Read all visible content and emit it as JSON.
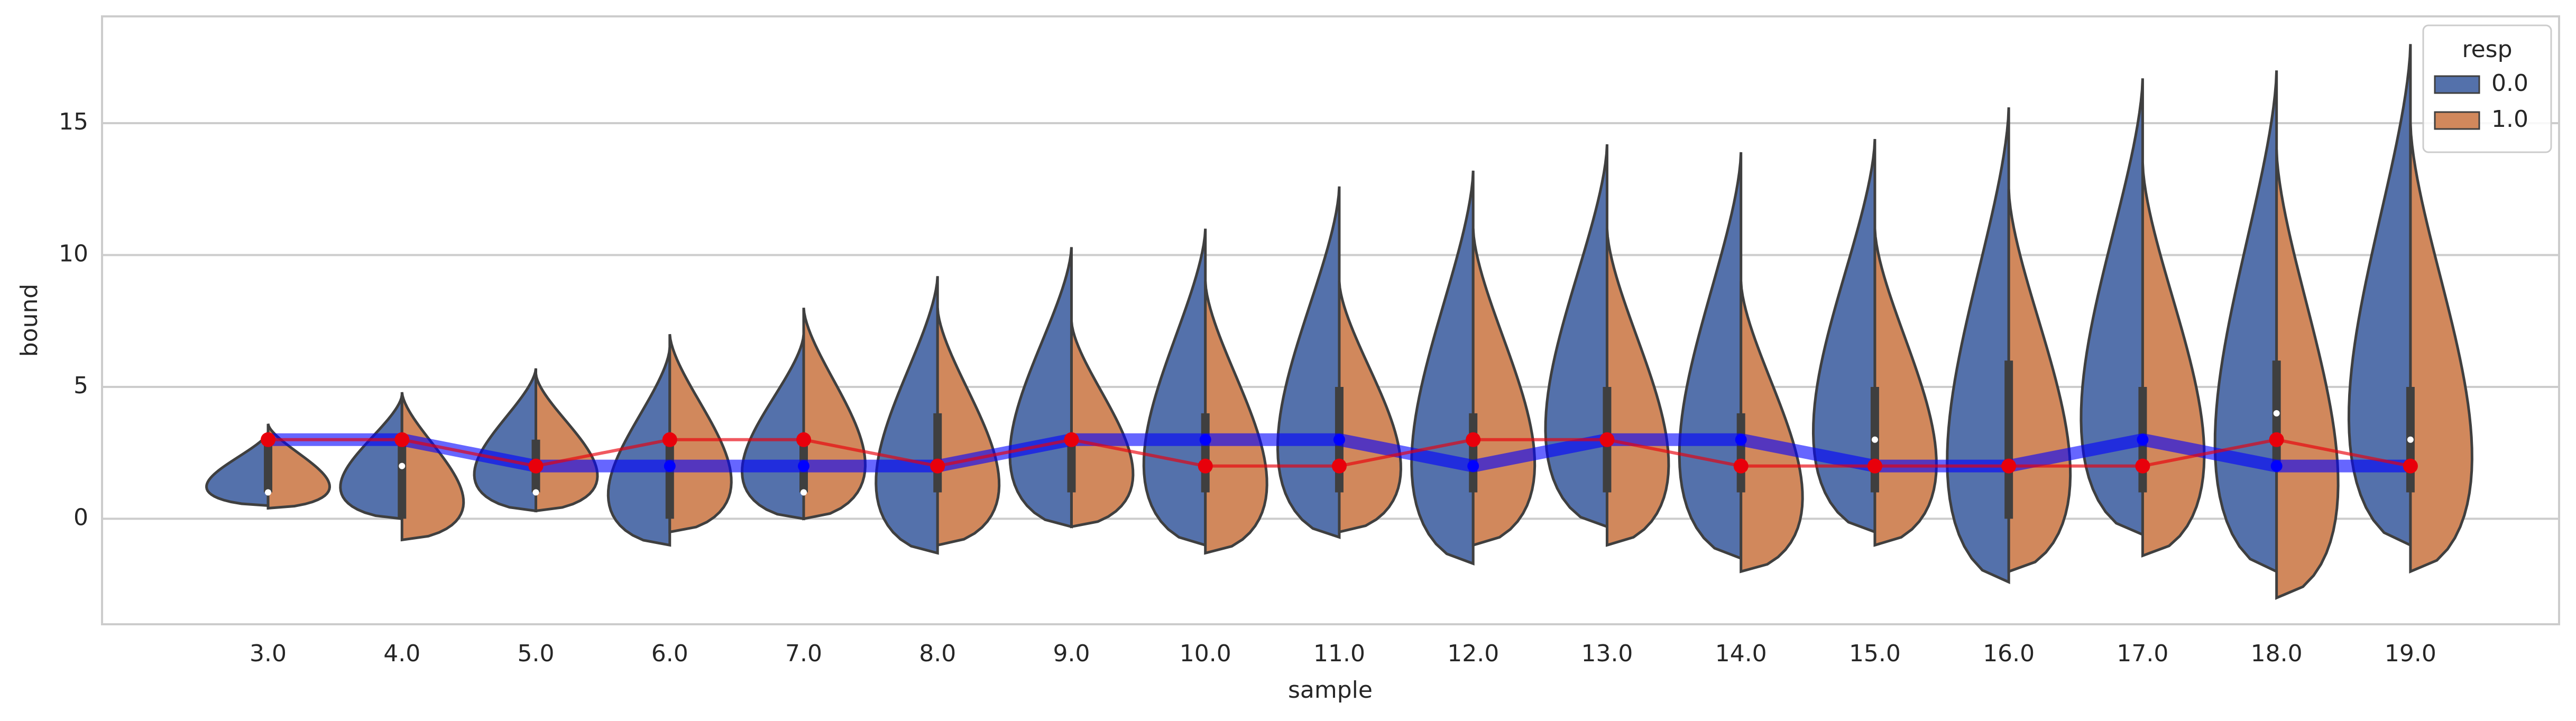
{
  "chart_data": {
    "type": "violin",
    "x_label": "sample",
    "y_label": "bound",
    "categories": [
      "3.0",
      "4.0",
      "5.0",
      "6.0",
      "7.0",
      "8.0",
      "9.0",
      "10.0",
      "11.0",
      "12.0",
      "13.0",
      "14.0",
      "15.0",
      "16.0",
      "17.0",
      "18.0",
      "19.0"
    ],
    "legend_title": "resp",
    "legend_loc": "upper right",
    "grid": true,
    "ylim": [
      -4,
      19.05
    ],
    "yticks": [
      0,
      5,
      10,
      15
    ],
    "series": [
      {
        "name": "0.0",
        "color": "#5471ab",
        "min": [
          0.5,
          0,
          0.3,
          -1,
          0,
          -1.3,
          -0.3,
          -1,
          -0.7,
          -1.7,
          -0.3,
          -1.5,
          -0.5,
          -2.4,
          -0.6,
          -2,
          -1
        ],
        "max": [
          3.3,
          4.7,
          5.7,
          6.5,
          7,
          9.2,
          10.3,
          11,
          12.6,
          13.2,
          14.2,
          13.9,
          14.4,
          15.6,
          16.7,
          17,
          18
        ]
      },
      {
        "name": "1.0",
        "color": "#d1885c",
        "min": [
          0.4,
          -0.8,
          0.3,
          -0.5,
          0,
          -1,
          -0.3,
          -1.3,
          -0.5,
          -1,
          -1,
          -2,
          -1,
          -2,
          -1.4,
          -3,
          -2
        ],
        "max": [
          3.6,
          4.8,
          5.5,
          7,
          8,
          8,
          7.5,
          9,
          9,
          11,
          11,
          9,
          11,
          12.5,
          13.5,
          14,
          15
        ]
      }
    ],
    "box": {
      "q1": [
        1,
        0,
        1,
        0,
        1,
        1,
        1,
        1,
        1,
        1,
        1,
        1,
        1,
        0,
        1,
        2,
        1
      ],
      "median": [
        1,
        2,
        1,
        2,
        1,
        2,
        3,
        3,
        3,
        2,
        3,
        3,
        3,
        2,
        3,
        4,
        3
      ],
      "q3": [
        3,
        3,
        3,
        3,
        3,
        4,
        3,
        4,
        5,
        4,
        5,
        4,
        5,
        6,
        5,
        6,
        5
      ]
    },
    "lines": [
      {
        "color": "#0000ff",
        "values": [
          3,
          3,
          2,
          2,
          2,
          2,
          3,
          3,
          3,
          2,
          3,
          3,
          2,
          2,
          3,
          2,
          2
        ]
      },
      {
        "color": "#e8000b",
        "values": [
          3,
          3,
          2,
          3,
          3,
          2,
          3,
          2,
          2,
          3,
          3,
          2,
          2,
          2,
          2,
          3,
          2
        ]
      }
    ]
  }
}
